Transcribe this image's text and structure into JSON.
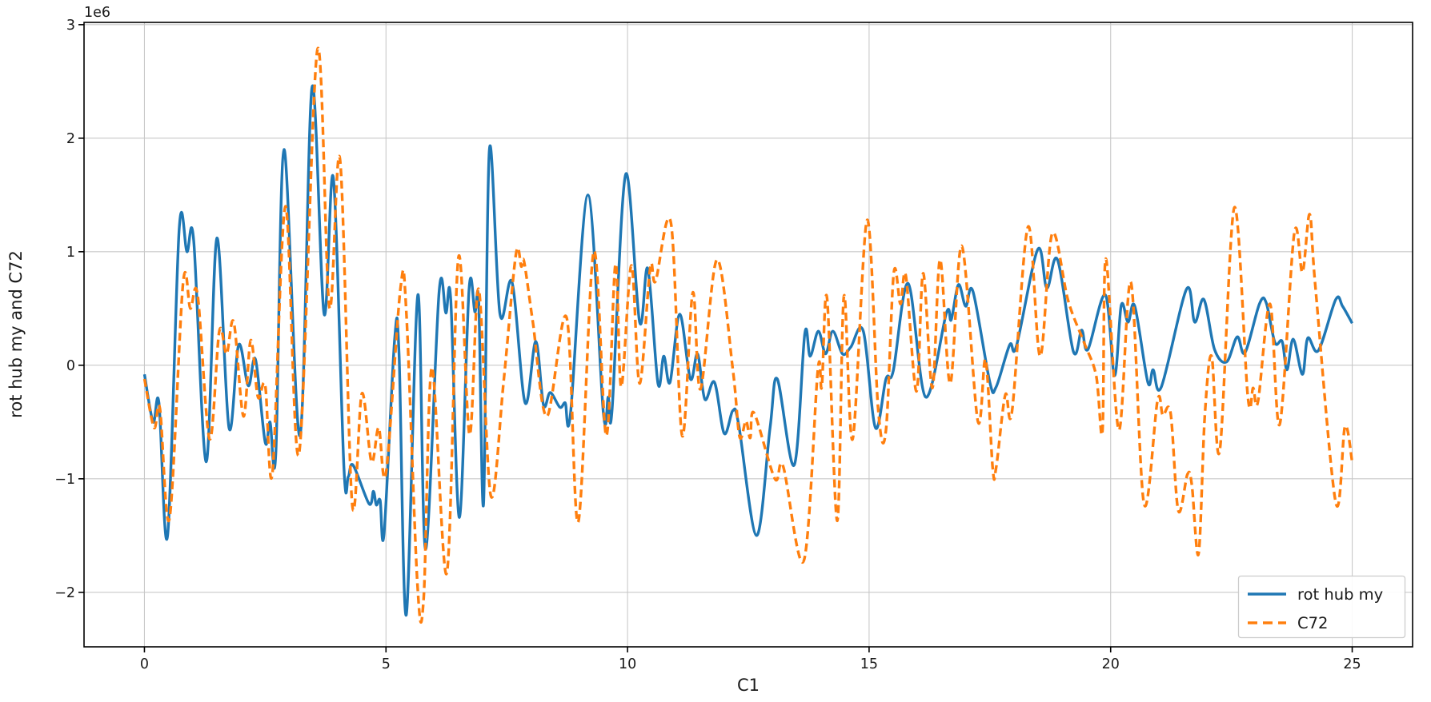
{
  "chart_data": {
    "type": "line",
    "title": "",
    "xlabel": "C1",
    "ylabel": "rot hub my and C72",
    "offset_text": "1e6",
    "x_ticks": [
      0,
      5,
      10,
      15,
      20,
      25
    ],
    "x_tick_labels": [
      "0",
      "5",
      "10",
      "15",
      "20",
      "25"
    ],
    "y_ticks": [
      -2,
      -1,
      0,
      1,
      2,
      3
    ],
    "y_tick_labels": [
      "−2",
      "−1",
      "0",
      "1",
      "2",
      "3"
    ],
    "xlim": [
      -1.25,
      26.25
    ],
    "ylim": [
      -2.48,
      3.02
    ],
    "y_unit_multiplier": 1000000,
    "grid": true,
    "legend_position": "lower right",
    "series": [
      {
        "name": "rot hub my",
        "color": "#1f77b4",
        "style": "solid",
        "x": [
          0,
          0.18,
          0.3,
          0.48,
          0.72,
          0.88,
          1.02,
          1.28,
          1.5,
          1.75,
          1.95,
          2.15,
          2.3,
          2.5,
          2.6,
          2.72,
          2.89,
          3.22,
          3.47,
          3.72,
          3.91,
          4.13,
          4.22,
          4.32,
          4.65,
          4.74,
          4.8,
          4.88,
          4.96,
          5.18,
          5.27,
          5.42,
          5.66,
          5.82,
          6.1,
          6.24,
          6.34,
          6.52,
          6.72,
          6.84,
          6.92,
          7.02,
          7.14,
          7.36,
          7.61,
          7.88,
          8.1,
          8.26,
          8.4,
          8.6,
          8.71,
          8.82,
          9.18,
          9.5,
          9.6,
          9.68,
          9.96,
          10.25,
          10.42,
          10.63,
          10.75,
          10.88,
          11.08,
          11.3,
          11.45,
          11.6,
          11.8,
          12.0,
          12.18,
          12.3,
          12.67,
          12.95,
          13.1,
          13.45,
          13.67,
          13.78,
          13.95,
          14.1,
          14.25,
          14.45,
          14.62,
          14.88,
          15.13,
          15.35,
          15.5,
          15.81,
          16.17,
          16.6,
          16.7,
          16.85,
          17.0,
          17.15,
          17.5,
          17.63,
          17.91,
          18.05,
          18.49,
          18.68,
          18.9,
          19.23,
          19.4,
          19.53,
          19.89,
          20.08,
          20.22,
          20.36,
          20.5,
          20.77,
          20.88,
          21.05,
          21.57,
          21.74,
          21.93,
          22.15,
          22.4,
          22.62,
          22.78,
          23.08,
          23.22,
          23.4,
          23.55,
          23.65,
          23.78,
          23.97,
          24.08,
          24.3,
          24.66,
          24.8,
          25.0
        ],
        "y": [
          -0.08,
          -0.5,
          -0.33,
          -1.5,
          1.2,
          1.0,
          1.1,
          -0.85,
          1.12,
          -0.55,
          0.18,
          -0.18,
          0.05,
          -0.68,
          -0.5,
          -0.78,
          1.9,
          -0.62,
          2.45,
          0.45,
          1.65,
          -0.91,
          -0.98,
          -0.88,
          -1.22,
          -1.11,
          -1.23,
          -1.19,
          -1.48,
          0.23,
          0.1,
          -2.2,
          0.62,
          -1.62,
          0.65,
          0.46,
          0.58,
          -1.34,
          0.67,
          0.47,
          0.55,
          -1.22,
          1.9,
          0.45,
          0.73,
          -0.33,
          0.21,
          -0.35,
          -0.24,
          -0.37,
          -0.33,
          -0.42,
          1.5,
          -0.42,
          -0.28,
          -0.39,
          1.68,
          0.38,
          0.85,
          -0.16,
          0.08,
          -0.15,
          0.45,
          -0.12,
          0.1,
          -0.3,
          -0.15,
          -0.6,
          -0.4,
          -0.52,
          -1.5,
          -0.55,
          -0.12,
          -0.88,
          0.28,
          0.08,
          0.3,
          0.1,
          0.3,
          0.1,
          0.16,
          0.3,
          -0.55,
          -0.12,
          -0.05,
          0.72,
          -0.28,
          0.46,
          0.4,
          0.71,
          0.52,
          0.65,
          -0.15,
          -0.19,
          0.18,
          0.17,
          1.02,
          0.68,
          0.93,
          0.12,
          0.31,
          0.14,
          0.62,
          -0.09,
          0.53,
          0.38,
          0.52,
          -0.15,
          -0.04,
          -0.19,
          0.67,
          0.38,
          0.58,
          0.14,
          0.03,
          0.25,
          0.11,
          0.54,
          0.55,
          0.2,
          0.21,
          -0.04,
          0.23,
          -0.08,
          0.24,
          0.13,
          0.58,
          0.52,
          0.37
        ]
      },
      {
        "name": "C72",
        "color": "#ff7f0e",
        "style": "dashed",
        "x": [
          0,
          0.2,
          0.32,
          0.52,
          0.8,
          0.95,
          1.1,
          1.35,
          1.55,
          1.7,
          1.85,
          2.05,
          2.2,
          2.35,
          2.5,
          2.65,
          2.92,
          3.2,
          3.58,
          3.83,
          4.05,
          4.3,
          4.5,
          4.7,
          4.85,
          5.0,
          5.3,
          5.42,
          5.65,
          5.78,
          5.95,
          6.26,
          6.5,
          6.73,
          6.92,
          7.17,
          7.44,
          7.69,
          7.8,
          7.86,
          8.04,
          8.33,
          8.74,
          8.98,
          9.3,
          9.56,
          9.75,
          9.87,
          10.08,
          10.25,
          10.47,
          10.58,
          10.9,
          11.13,
          11.35,
          11.51,
          11.85,
          12.18,
          12.32,
          12.45,
          12.54,
          12.62,
          13.05,
          13.22,
          13.65,
          13.94,
          14.02,
          14.13,
          14.34,
          14.48,
          14.66,
          14.96,
          15.19,
          15.35,
          15.51,
          15.65,
          15.76,
          15.98,
          16.12,
          16.31,
          16.47,
          16.68,
          16.92,
          17.25,
          17.41,
          17.56,
          17.63,
          17.82,
          17.96,
          18.29,
          18.54,
          18.79,
          19.12,
          19.45,
          19.7,
          19.83,
          19.9,
          20.17,
          20.42,
          20.69,
          20.97,
          21.08,
          21.24,
          21.4,
          21.59,
          21.68,
          21.82,
          21.95,
          22.09,
          22.26,
          22.56,
          22.84,
          22.95,
          23.05,
          23.3,
          23.5,
          23.8,
          23.97,
          24.12,
          24.24,
          24.66,
          24.85,
          25.0
        ],
        "y": [
          -0.12,
          -0.55,
          -0.38,
          -1.35,
          0.72,
          0.5,
          0.62,
          -0.65,
          0.3,
          0.1,
          0.38,
          -0.45,
          0.22,
          -0.28,
          -0.18,
          -0.95,
          1.4,
          -0.78,
          2.78,
          0.51,
          1.81,
          -1.22,
          -0.25,
          -0.85,
          -0.55,
          -0.95,
          0.68,
          0.48,
          -1.92,
          -2.05,
          -0.02,
          -1.83,
          0.95,
          -0.61,
          0.67,
          -1.15,
          -0.12,
          0.98,
          0.87,
          0.91,
          0.38,
          -0.45,
          0.42,
          -1.38,
          1.0,
          -0.62,
          0.89,
          -0.19,
          0.88,
          -0.16,
          0.86,
          0.74,
          1.25,
          -0.62,
          0.64,
          -0.21,
          0.93,
          -0.04,
          -0.63,
          -0.49,
          -0.64,
          -0.42,
          -1.0,
          -0.89,
          -1.72,
          -0.04,
          -0.19,
          0.59,
          -1.37,
          0.61,
          -0.65,
          1.28,
          -0.4,
          -0.57,
          0.81,
          0.54,
          0.79,
          -0.23,
          0.81,
          -0.2,
          0.93,
          -0.16,
          1.05,
          -0.49,
          0.05,
          -0.91,
          -0.9,
          -0.26,
          -0.4,
          1.22,
          0.08,
          1.16,
          0.57,
          0.2,
          -0.09,
          -0.58,
          0.94,
          -0.57,
          0.73,
          -1.22,
          -0.31,
          -0.44,
          -0.42,
          -1.28,
          -0.96,
          -1.05,
          -1.66,
          -0.44,
          0.08,
          -0.75,
          1.39,
          -0.28,
          -0.2,
          -0.32,
          0.54,
          -0.52,
          1.16,
          0.82,
          1.33,
          0.68,
          -1.21,
          -0.54,
          -0.85
        ]
      }
    ],
    "legend": {
      "entries": [
        {
          "label": "rot hub my",
          "color": "#1f77b4",
          "style": "solid"
        },
        {
          "label": "C72",
          "color": "#ff7f0e",
          "style": "dashed"
        }
      ]
    }
  }
}
